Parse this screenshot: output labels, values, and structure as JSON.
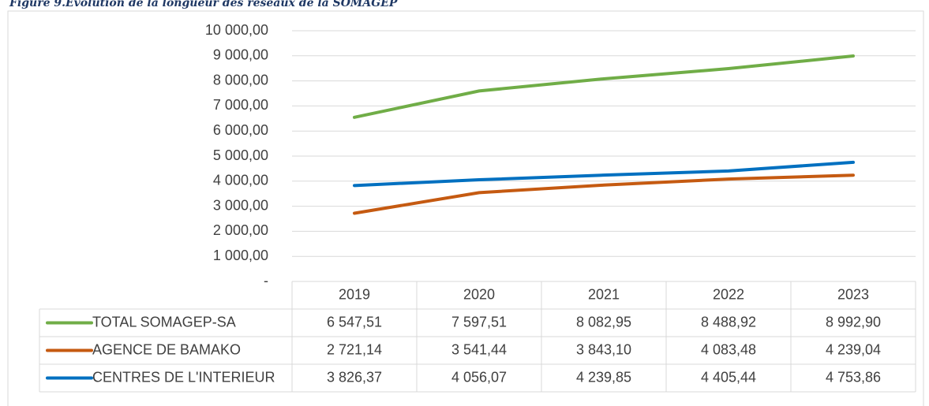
{
  "chart_data": {
    "type": "line",
    "title": "Figure 9.Evolution de la longueur des réseaux de la SOMAGEP",
    "categories": [
      "2019",
      "2020",
      "2021",
      "2022",
      "2023"
    ],
    "series": [
      {
        "name": "TOTAL SOMAGEP-SA",
        "color": "#70ad47",
        "values": [
          6547.51,
          7597.51,
          8082.95,
          8488.92,
          8992.9
        ],
        "value_labels": [
          "6 547,51",
          "7 597,51",
          "8 082,95",
          "8 488,92",
          "8 992,90"
        ]
      },
      {
        "name": "AGENCE DE BAMAKO",
        "color": "#c55a11",
        "values": [
          2721.14,
          3541.44,
          3843.1,
          4083.48,
          4239.04
        ],
        "value_labels": [
          "2 721,14",
          "3 541,44",
          "3 843,10",
          "4 083,48",
          "4 239,04"
        ]
      },
      {
        "name": "CENTRES DE L'INTERIEUR",
        "color": "#0070c0",
        "values": [
          3826.37,
          4056.07,
          4239.85,
          4405.44,
          4753.86
        ],
        "value_labels": [
          "3 826,37",
          "4 056,07",
          "4 239,85",
          "4 405,44",
          "4 753,86"
        ]
      }
    ],
    "ylim": [
      0,
      10000
    ],
    "yticks": [
      {
        "value": 0,
        "label": "-"
      },
      {
        "value": 1000,
        "label": "1 000,00"
      },
      {
        "value": 2000,
        "label": "2 000,00"
      },
      {
        "value": 3000,
        "label": "3 000,00"
      },
      {
        "value": 4000,
        "label": "4 000,00"
      },
      {
        "value": 5000,
        "label": "5 000,00"
      },
      {
        "value": 6000,
        "label": "6 000,00"
      },
      {
        "value": 7000,
        "label": "7 000,00"
      },
      {
        "value": 8000,
        "label": "8 000,00"
      },
      {
        "value": 9000,
        "label": "9 000,00"
      },
      {
        "value": 10000,
        "label": "10 000,00"
      }
    ],
    "grid": true
  }
}
